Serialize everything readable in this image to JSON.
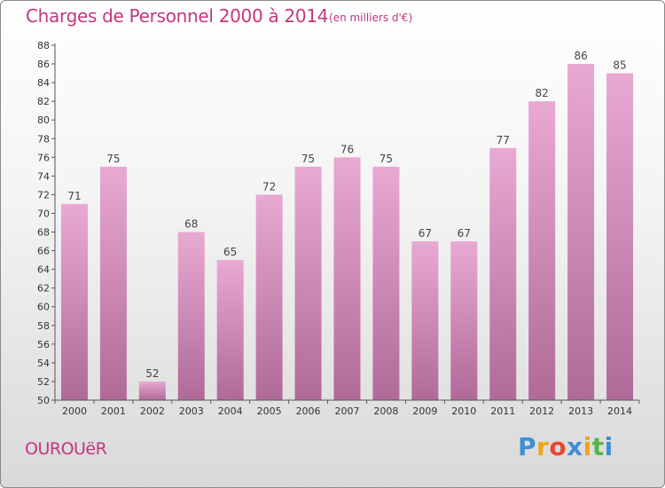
{
  "title": "Charges de Personnel 2000 à 2014",
  "unit_label": "(en milliers d'€)",
  "commune": "OUROUëR",
  "logo": {
    "letters": [
      "P",
      "r",
      "o",
      "x",
      "i",
      "t",
      "i"
    ],
    "colors": [
      "#3e8fd6",
      "#f0a41b",
      "#e8462e",
      "#3e8fd6",
      "#f0a41b",
      "#58b247",
      "#3e8fd6"
    ]
  },
  "colors": {
    "accent": "#c2377f",
    "bar_top": "#e8a9d2",
    "bar_bottom": "#b06a98",
    "axis": "#555555"
  },
  "chart_data": {
    "type": "bar",
    "categories": [
      "2000",
      "2001",
      "2002",
      "2003",
      "2004",
      "2005",
      "2006",
      "2007",
      "2008",
      "2009",
      "2010",
      "2011",
      "2012",
      "2013",
      "2014"
    ],
    "values": [
      71,
      75,
      52,
      68,
      65,
      72,
      75,
      76,
      75,
      67,
      67,
      77,
      82,
      86,
      85
    ],
    "ylim": [
      50,
      88
    ],
    "ytick_step": 2,
    "grid": false,
    "data_labels": true
  }
}
